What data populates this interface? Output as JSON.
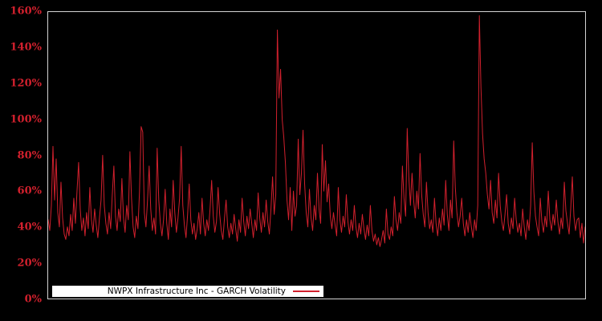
{
  "window": {
    "background_color": "#000000"
  },
  "legend": {
    "label": "NWPX Infrastructure Inc - GARCH Volatility",
    "box_background": "#ffffff",
    "text_color": "#000000",
    "line_sample_color": "#d1202d"
  },
  "chart_data": {
    "type": "line",
    "title": "NWPX Infrastructure Inc - GARCH Volatility",
    "series_name": "GARCH Volatility",
    "company": "NWPX Infrastructure Inc",
    "unit": "%",
    "xlabel": "",
    "ylabel": "",
    "ylim": [
      0,
      160
    ],
    "yticks": [
      0,
      20,
      40,
      60,
      80,
      100,
      120,
      140,
      160
    ],
    "ytick_labels": [
      "0%",
      "20%",
      "40%",
      "60%",
      "80%",
      "100%",
      "120%",
      "140%",
      "160%"
    ],
    "xticks_visible": false,
    "grid": false,
    "legend_position": "bottom-left",
    "line_color": "#d1202d",
    "tick_label_color": "#d1202d",
    "border_color": "#d4d4d4",
    "plot_background": "#000000",
    "values_percent": [
      44,
      38,
      52,
      85,
      55,
      78,
      48,
      40,
      65,
      45,
      36,
      33,
      40,
      35,
      47,
      38,
      56,
      42,
      60,
      76,
      50,
      38,
      45,
      35,
      48,
      39,
      62,
      44,
      37,
      50,
      41,
      34,
      45,
      55,
      80,
      52,
      42,
      36,
      48,
      39,
      58,
      74,
      46,
      38,
      50,
      43,
      67,
      45,
      37,
      52,
      44,
      82,
      56,
      40,
      34,
      46,
      39,
      60,
      96,
      93,
      48,
      40,
      55,
      74,
      50,
      38,
      45,
      36,
      84,
      55,
      42,
      35,
      44,
      61,
      42,
      33,
      50,
      40,
      66,
      48,
      37,
      45,
      56,
      85,
      52,
      41,
      34,
      47,
      64,
      44,
      36,
      42,
      33,
      39,
      48,
      36,
      56,
      42,
      35,
      44,
      38,
      50,
      66,
      46,
      37,
      43,
      62,
      47,
      38,
      33,
      45,
      55,
      40,
      34,
      42,
      36,
      47,
      39,
      32,
      44,
      37,
      56,
      43,
      35,
      46,
      39,
      50,
      42,
      34,
      44,
      38,
      59,
      45,
      37,
      48,
      40,
      55,
      43,
      36,
      50,
      68,
      47,
      58,
      150,
      112,
      128,
      100,
      90,
      76,
      55,
      44,
      62,
      38,
      60,
      46,
      52,
      89,
      58,
      70,
      94,
      64,
      48,
      40,
      61,
      45,
      38,
      52,
      44,
      70,
      50,
      42,
      86,
      60,
      77,
      54,
      64,
      46,
      39,
      48,
      41,
      35,
      62,
      44,
      37,
      46,
      40,
      58,
      43,
      36,
      44,
      38,
      52,
      40,
      34,
      42,
      36,
      47,
      39,
      33,
      41,
      35,
      52,
      38,
      32,
      36,
      30,
      34,
      29,
      33,
      38,
      31,
      50,
      36,
      33,
      40,
      35,
      57,
      44,
      38,
      48,
      42,
      74,
      56,
      46,
      95,
      68,
      52,
      70,
      55,
      45,
      60,
      50,
      81,
      58,
      47,
      40,
      65,
      48,
      39,
      44,
      37,
      56,
      42,
      35,
      45,
      38,
      50,
      41,
      66,
      47,
      38,
      55,
      45,
      88,
      62,
      48,
      40,
      46,
      56,
      42,
      35,
      44,
      37,
      48,
      40,
      34,
      44,
      38,
      52,
      158,
      118,
      92,
      78,
      70,
      58,
      50,
      66,
      48,
      42,
      55,
      45,
      70,
      52,
      43,
      38,
      47,
      58,
      42,
      36,
      45,
      39,
      56,
      44,
      37,
      42,
      35,
      50,
      40,
      33,
      44,
      38,
      52,
      87,
      60,
      46,
      40,
      35,
      56,
      43,
      37,
      46,
      40,
      60,
      44,
      38,
      47,
      41,
      55,
      43,
      36,
      45,
      39,
      65,
      49,
      42,
      36,
      50,
      68,
      46,
      38,
      44,
      45,
      34,
      42,
      31,
      40
    ]
  }
}
